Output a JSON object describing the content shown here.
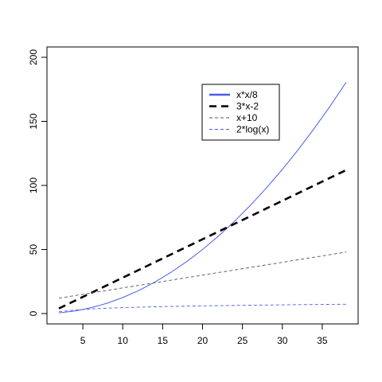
{
  "chart_data": {
    "type": "line",
    "title": "",
    "xlabel": "",
    "ylabel": "",
    "xlim": [
      2,
      38
    ],
    "ylim": [
      0,
      200
    ],
    "x_ticks": [
      5,
      10,
      15,
      20,
      25,
      30,
      35
    ],
    "y_ticks": [
      0,
      50,
      100,
      150,
      200
    ],
    "grid": false,
    "legend_position": "top-center-right",
    "x": [
      2,
      4,
      6,
      8,
      10,
      12,
      14,
      16,
      18,
      20,
      22,
      24,
      26,
      28,
      30,
      32,
      34,
      36,
      38
    ],
    "series": [
      {
        "name": "x*x/8",
        "color": "#4a5ee6",
        "line_style": "solid",
        "legend_style": "solid-thick",
        "values": [
          0.5,
          2,
          4.5,
          8,
          12.5,
          18,
          24.5,
          32,
          40.5,
          50,
          60.5,
          72,
          84.5,
          98,
          112.5,
          128,
          144.5,
          162,
          180.5
        ]
      },
      {
        "name": "3*x-2",
        "color": "#000000",
        "line_style": "dashed-thick",
        "legend_style": "dashed-thick",
        "values": [
          4,
          10,
          16,
          22,
          28,
          34,
          40,
          46,
          52,
          58,
          64,
          70,
          76,
          82,
          88,
          94,
          100,
          106,
          112
        ]
      },
      {
        "name": "x+10",
        "color": "#555555",
        "line_style": "dashed-thin",
        "legend_style": "dashed-thin",
        "values": [
          12,
          14,
          16,
          18,
          20,
          22,
          24,
          26,
          28,
          30,
          32,
          34,
          36,
          38,
          40,
          42,
          44,
          46,
          48
        ]
      },
      {
        "name": "2*log(x)",
        "color": "#4a5ee6",
        "line_style": "dashed-thin",
        "legend_style": "dashed-thin",
        "values": [
          1.39,
          2.77,
          3.58,
          4.16,
          4.61,
          4.97,
          5.28,
          5.55,
          5.78,
          5.99,
          6.18,
          6.36,
          6.52,
          6.66,
          6.8,
          6.93,
          7.05,
          7.17,
          7.28
        ]
      }
    ]
  }
}
